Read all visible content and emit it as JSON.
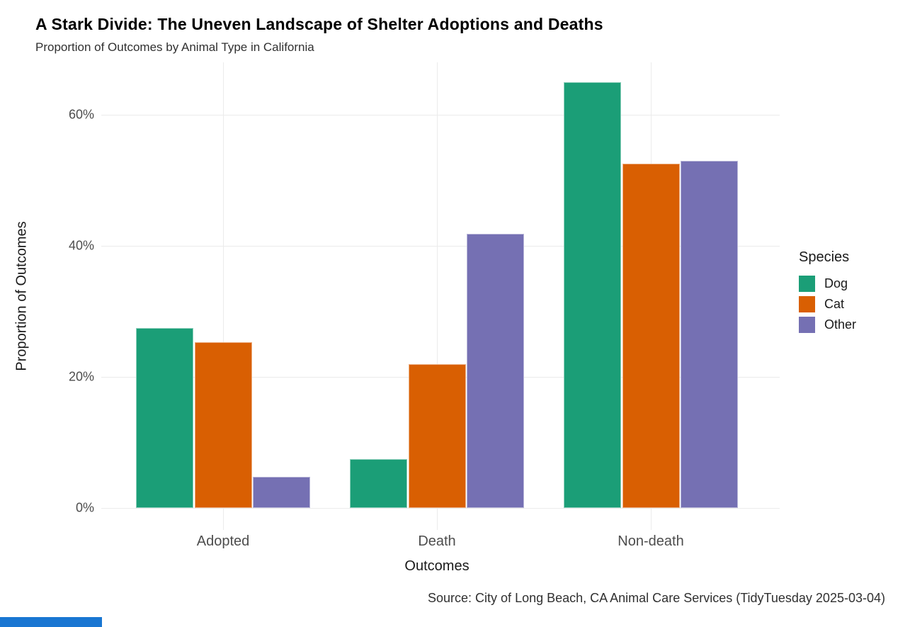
{
  "chart_data": {
    "type": "bar",
    "grouping": "grouped",
    "title": "A Stark Divide: The Uneven Landscape of Shelter Adoptions and Deaths",
    "subtitle": "Proportion of Outcomes by Animal Type in California",
    "caption": "Source: City of Long Beach, CA Animal Care Services (TidyTuesday 2025-03-04)",
    "xlabel": "Outcomes",
    "ylabel": "Proportion of Outcomes",
    "categories": [
      "Adopted",
      "Death",
      "Non-death"
    ],
    "series": [
      {
        "name": "Dog",
        "color": "#1B9E77",
        "values": [
          27.5,
          7.5,
          65.0
        ]
      },
      {
        "name": "Cat",
        "color": "#D95F02",
        "values": [
          25.3,
          21.9,
          52.5
        ]
      },
      {
        "name": "Other",
        "color": "#7570B3",
        "values": [
          4.8,
          41.8,
          53.0
        ]
      }
    ],
    "y_ticks": [
      {
        "value": 0,
        "label": "0%"
      },
      {
        "value": 20,
        "label": "20%"
      },
      {
        "value": 40,
        "label": "40%"
      },
      {
        "value": 60,
        "label": "60%"
      }
    ],
    "ylim": [
      0,
      68
    ],
    "unit": "percent",
    "grid": "major-only",
    "gridline_color": "#ebebeb",
    "legend": {
      "title": "Species",
      "position": "right",
      "entries": [
        "Dog",
        "Cat",
        "Other"
      ]
    }
  },
  "decorations": {
    "bottom_strip_color": "#1976d2"
  }
}
